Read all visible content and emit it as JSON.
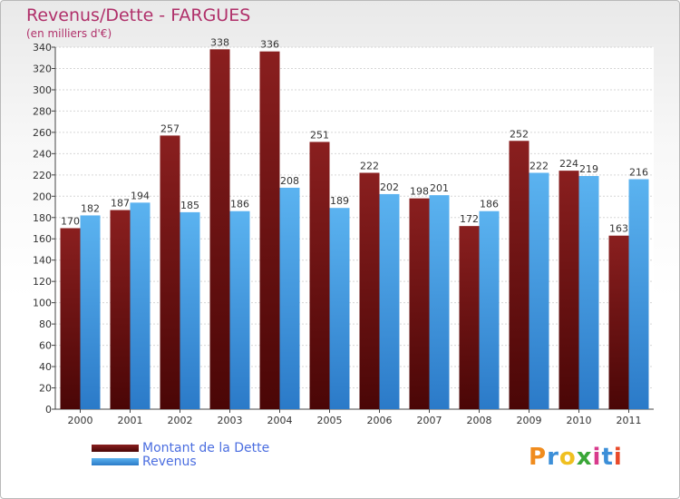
{
  "chart_data": {
    "type": "bar",
    "title": "Revenus/Dette - FARGUES",
    "subtitle": "(en milliers d'€)",
    "categories": [
      "2000",
      "2001",
      "2002",
      "2003",
      "2004",
      "2005",
      "2006",
      "2007",
      "2008",
      "2009",
      "2010",
      "2011"
    ],
    "series": [
      {
        "name": "Montant de la Dette",
        "color": "#7a1818",
        "values": [
          170,
          187,
          257,
          338,
          336,
          251,
          222,
          198,
          172,
          252,
          224,
          163
        ]
      },
      {
        "name": "Revenus",
        "color": "#4ea6e8",
        "values": [
          182,
          194,
          185,
          186,
          208,
          189,
          202,
          201,
          186,
          222,
          219,
          216
        ]
      }
    ],
    "ylim": [
      0,
      340
    ],
    "yticks": [
      0,
      20,
      40,
      60,
      80,
      100,
      120,
      140,
      160,
      180,
      200,
      220,
      240,
      260,
      280,
      300,
      320,
      340
    ],
    "grid": true,
    "legend_position": "bottom-left"
  },
  "logo": {
    "text": "Proxiti",
    "letter_colors": [
      "#f08c1e",
      "#3c8fd8",
      "#f0c020",
      "#3aa638",
      "#d83a8c",
      "#3c8fd8",
      "#e84a2a"
    ]
  }
}
